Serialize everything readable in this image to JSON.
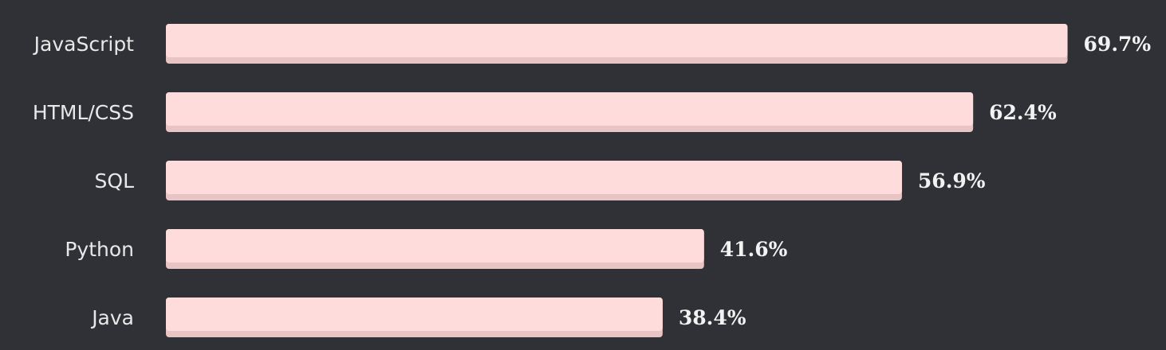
{
  "colors": {
    "background": "#2f3136",
    "bar": "#ffdcdc",
    "bar_shadow": "#e8c4c4",
    "label": "#e8e8e8",
    "value": "#f2f2f2"
  },
  "chart_data": {
    "type": "bar",
    "orientation": "horizontal",
    "categories": [
      "JavaScript",
      "HTML/CSS",
      "SQL",
      "Python",
      "Java"
    ],
    "values": [
      69.7,
      62.4,
      56.9,
      41.6,
      38.4
    ],
    "value_labels": [
      "69.7%",
      "62.4%",
      "56.9%",
      "41.6%",
      "38.4%"
    ],
    "unit": "%",
    "grid": false
  }
}
